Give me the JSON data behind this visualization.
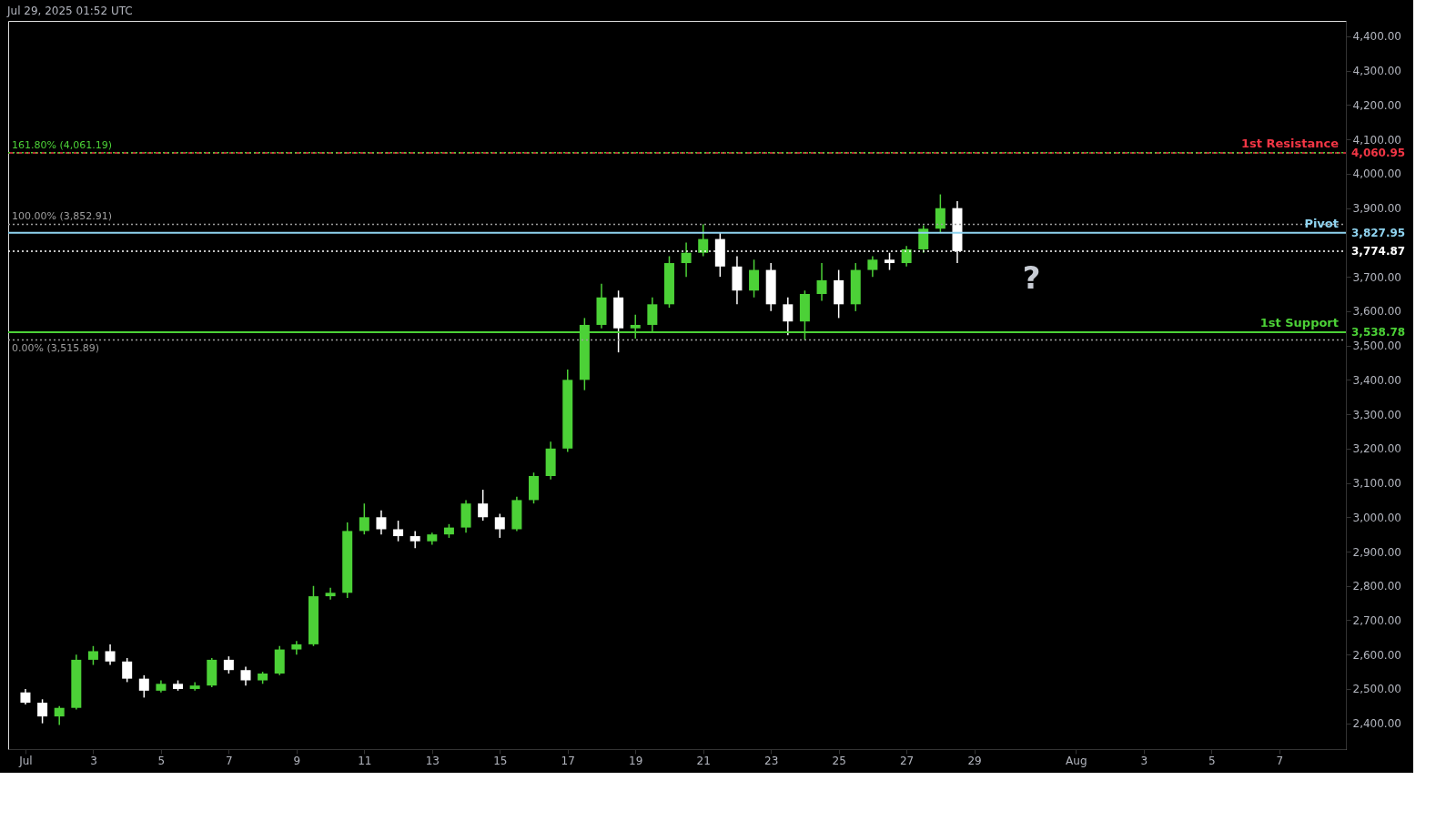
{
  "chart_data": {
    "type": "candlestick",
    "annotations": [
      "Jul 29, 2025 01:52 UTC",
      "?",
      "4,060.95",
      "3,827.95",
      "3,538.78"
    ],
    "x": [
      "2025-07-01T00:00",
      "2025-07-01T12:00",
      "2025-07-02T00:00",
      "2025-07-02T12:00",
      "2025-07-03T00:00",
      "2025-07-03T12:00",
      "2025-07-04T00:00",
      "2025-07-04T12:00",
      "2025-07-05T00:00",
      "2025-07-05T12:00",
      "2025-07-06T00:00",
      "2025-07-06T12:00",
      "2025-07-07T00:00",
      "2025-07-07T12:00",
      "2025-07-08T00:00",
      "2025-07-08T12:00",
      "2025-07-09T00:00",
      "2025-07-09T12:00",
      "2025-07-10T00:00",
      "2025-07-10T12:00",
      "2025-07-11T00:00",
      "2025-07-11T12:00",
      "2025-07-12T00:00",
      "2025-07-12T12:00",
      "2025-07-13T00:00",
      "2025-07-13T12:00",
      "2025-07-14T00:00",
      "2025-07-14T12:00",
      "2025-07-15T00:00",
      "2025-07-15T12:00",
      "2025-07-16T00:00",
      "2025-07-16T12:00",
      "2025-07-17T00:00",
      "2025-07-17T12:00",
      "2025-07-18T00:00",
      "2025-07-18T12:00",
      "2025-07-19T00:00",
      "2025-07-19T12:00",
      "2025-07-20T00:00",
      "2025-07-20T12:00",
      "2025-07-21T00:00",
      "2025-07-21T12:00",
      "2025-07-22T00:00",
      "2025-07-22T12:00",
      "2025-07-23T00:00",
      "2025-07-23T12:00",
      "2025-07-24T00:00",
      "2025-07-24T12:00",
      "2025-07-25T00:00",
      "2025-07-25T12:00",
      "2025-07-26T00:00",
      "2025-07-26T12:00",
      "2025-07-27T00:00",
      "2025-07-27T12:00",
      "2025-07-28T00:00",
      "2025-07-28T12:00"
    ],
    "ohlc": [
      [
        2490,
        2500,
        2455,
        2460
      ],
      [
        2460,
        2470,
        2400,
        2420
      ],
      [
        2420,
        2450,
        2395,
        2445
      ],
      [
        2445,
        2600,
        2440,
        2585
      ],
      [
        2585,
        2625,
        2570,
        2610
      ],
      [
        2610,
        2630,
        2570,
        2580
      ],
      [
        2580,
        2590,
        2520,
        2530
      ],
      [
        2530,
        2540,
        2475,
        2495
      ],
      [
        2495,
        2525,
        2490,
        2515
      ],
      [
        2515,
        2525,
        2495,
        2500
      ],
      [
        2500,
        2520,
        2495,
        2510
      ],
      [
        2510,
        2590,
        2505,
        2585
      ],
      [
        2585,
        2595,
        2545,
        2555
      ],
      [
        2555,
        2565,
        2510,
        2525
      ],
      [
        2525,
        2550,
        2515,
        2545
      ],
      [
        2545,
        2625,
        2540,
        2615
      ],
      [
        2615,
        2640,
        2600,
        2630
      ],
      [
        2630,
        2800,
        2625,
        2770
      ],
      [
        2770,
        2795,
        2760,
        2780
      ],
      [
        2780,
        2985,
        2765,
        2960
      ],
      [
        2960,
        3040,
        2950,
        3000
      ],
      [
        3000,
        3020,
        2950,
        2965
      ],
      [
        2965,
        2990,
        2930,
        2945
      ],
      [
        2945,
        2960,
        2910,
        2930
      ],
      [
        2930,
        2955,
        2920,
        2950
      ],
      [
        2950,
        2980,
        2940,
        2970
      ],
      [
        2970,
        3050,
        2955,
        3040
      ],
      [
        3040,
        3080,
        2990,
        3000
      ],
      [
        3000,
        3010,
        2940,
        2965
      ],
      [
        2965,
        3060,
        2960,
        3050
      ],
      [
        3050,
        3130,
        3040,
        3120
      ],
      [
        3120,
        3220,
        3110,
        3200
      ],
      [
        3200,
        3430,
        3190,
        3400
      ],
      [
        3400,
        3580,
        3370,
        3560
      ],
      [
        3560,
        3680,
        3550,
        3640
      ],
      [
        3640,
        3660,
        3480,
        3550
      ],
      [
        3550,
        3590,
        3520,
        3560
      ],
      [
        3560,
        3640,
        3540,
        3620
      ],
      [
        3620,
        3760,
        3610,
        3740
      ],
      [
        3740,
        3800,
        3700,
        3770
      ],
      [
        3770,
        3853,
        3760,
        3810
      ],
      [
        3810,
        3830,
        3700,
        3730
      ],
      [
        3730,
        3760,
        3620,
        3660
      ],
      [
        3660,
        3750,
        3640,
        3720
      ],
      [
        3720,
        3740,
        3600,
        3620
      ],
      [
        3620,
        3640,
        3530,
        3570
      ],
      [
        3570,
        3660,
        3516,
        3650
      ],
      [
        3650,
        3740,
        3630,
        3690
      ],
      [
        3690,
        3720,
        3580,
        3620
      ],
      [
        3620,
        3740,
        3600,
        3720
      ],
      [
        3720,
        3760,
        3700,
        3750
      ],
      [
        3750,
        3770,
        3720,
        3740
      ],
      [
        3740,
        3790,
        3730,
        3780
      ],
      [
        3780,
        3850,
        3770,
        3840
      ],
      [
        3840,
        3940,
        3830,
        3900
      ],
      [
        3900,
        3920,
        3740,
        3774.87
      ]
    ],
    "colors": [
      "#ffffff",
      "#ffffff",
      "#4cd137",
      "#4cd137",
      "#4cd137",
      "#ffffff",
      "#ffffff",
      "#ffffff",
      "#4cd137",
      "#ffffff",
      "#4cd137",
      "#4cd137",
      "#ffffff",
      "#ffffff",
      "#4cd137",
      "#4cd137",
      "#4cd137",
      "#4cd137",
      "#4cd137",
      "#4cd137",
      "#4cd137",
      "#ffffff",
      "#ffffff",
      "#ffffff",
      "#4cd137",
      "#4cd137",
      "#4cd137",
      "#ffffff",
      "#ffffff",
      "#4cd137",
      "#4cd137",
      "#4cd137",
      "#4cd137",
      "#4cd137",
      "#4cd137",
      "#ffffff",
      "#4cd137",
      "#4cd137",
      "#4cd137",
      "#4cd137",
      "#4cd137",
      "#ffffff",
      "#ffffff",
      "#4cd137",
      "#ffffff",
      "#ffffff",
      "#4cd137",
      "#4cd137",
      "#ffffff",
      "#4cd137",
      "#4cd137",
      "#ffffff",
      "#4cd137",
      "#4cd137",
      "#4cd137",
      "#ffffff"
    ],
    "xlim": [
      "2025-06-30T15:00",
      "2025-08-08T20:00"
    ],
    "xticks": [
      {
        "value": "2025-07-01",
        "label": "Jul"
      },
      {
        "value": "2025-07-03",
        "label": "3"
      },
      {
        "value": "2025-07-05",
        "label": "5"
      },
      {
        "value": "2025-07-07",
        "label": "7"
      },
      {
        "value": "2025-07-09",
        "label": "9"
      },
      {
        "value": "2025-07-11",
        "label": "11"
      },
      {
        "value": "2025-07-13",
        "label": "13"
      },
      {
        "value": "2025-07-15",
        "label": "15"
      },
      {
        "value": "2025-07-17",
        "label": "17"
      },
      {
        "value": "2025-07-19",
        "label": "19"
      },
      {
        "value": "2025-07-21",
        "label": "21"
      },
      {
        "value": "2025-07-23",
        "label": "23"
      },
      {
        "value": "2025-07-25",
        "label": "25"
      },
      {
        "value": "2025-07-27",
        "label": "27"
      },
      {
        "value": "2025-07-29",
        "label": "29"
      },
      {
        "value": "2025-08-01",
        "label": "Aug"
      },
      {
        "value": "2025-08-03",
        "label": "3"
      },
      {
        "value": "2025-08-05",
        "label": "5"
      },
      {
        "value": "2025-08-07",
        "label": "7"
      }
    ],
    "ylim": [
      2325,
      4445
    ],
    "yticks": [
      {
        "value": 2400,
        "label": "2,400.00"
      },
      {
        "value": 2500,
        "label": "2,500.00"
      },
      {
        "value": 2600,
        "label": "2,600.00"
      },
      {
        "value": 2700,
        "label": "2,700.00"
      },
      {
        "value": 2800,
        "label": "2,800.00"
      },
      {
        "value": 2900,
        "label": "2,900.00"
      },
      {
        "value": 3000,
        "label": "3,000.00"
      },
      {
        "value": 3100,
        "label": "3,100.00"
      },
      {
        "value": 3200,
        "label": "3,200.00"
      },
      {
        "value": 3300,
        "label": "3,300.00"
      },
      {
        "value": 3400,
        "label": "3,400.00"
      },
      {
        "value": 3500,
        "label": "3,500.00"
      },
      {
        "value": 3600,
        "label": "3,600.00"
      },
      {
        "value": 3700,
        "label": "3,700.00"
      },
      {
        "value": 3900,
        "label": "3,900.00"
      },
      {
        "value": 4000,
        "label": "4,000.00"
      },
      {
        "value": 4100,
        "label": "4,100.00"
      },
      {
        "value": 4200,
        "label": "4,200.00"
      },
      {
        "value": 4300,
        "label": "4,300.00"
      },
      {
        "value": 4400,
        "label": "4,400.00"
      }
    ],
    "ref_lines": [
      {
        "axis": "y",
        "value": 4060.95,
        "label": "1st Resistance",
        "color": "#f23645",
        "line_style": "dashed"
      },
      {
        "axis": "y",
        "value": 4061.19,
        "label": "161.80% (4,061.19)",
        "color": "#4cd137",
        "line_style": "dotted"
      },
      {
        "axis": "y",
        "value": 3852.91,
        "label": "100.00% (3,852.91)",
        "color": "#9e9e9e",
        "line_style": "dotted"
      },
      {
        "axis": "y",
        "value": 3827.95,
        "label": "Pivot",
        "color": "#8fd3ef",
        "line_style": "solid"
      },
      {
        "axis": "y",
        "value": 3774.87,
        "label": "3,774.87",
        "color": "#ffffff",
        "line_style": "dotted"
      },
      {
        "axis": "y",
        "value": 3538.78,
        "label": "1st Support",
        "color": "#4cd137",
        "line_style": "solid"
      },
      {
        "axis": "y",
        "value": 3515.89,
        "label": "0.00% (3,515.89)",
        "color": "#9e9e9e",
        "line_style": "dotted"
      }
    ],
    "grid": false
  }
}
